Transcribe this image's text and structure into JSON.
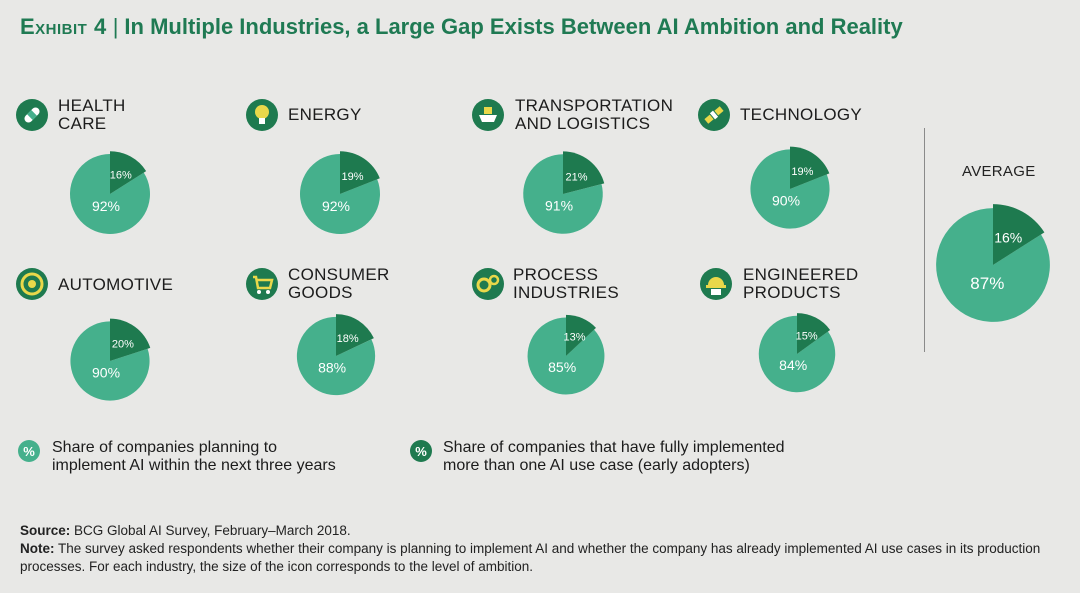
{
  "header": {
    "exhibit": "Exhibit 4",
    "separator": "|",
    "title": "In Multiple Industries, a Large Gap Exists Between AI Ambition and Reality"
  },
  "colors": {
    "light": "#45b08c",
    "dark": "#1e7a4f",
    "title": "#1f7a53"
  },
  "chart_data": {
    "type": "pie",
    "description_values": "Each industry: ambition = share planning to implement AI within next three years; adopters = share with more than one AI use case fully implemented",
    "industries": [
      {
        "name_line1": "HEALTH",
        "name_line2": "CARE",
        "icon": "bandage-icon",
        "ambition": 92,
        "adopters": 16
      },
      {
        "name_line1": "ENERGY",
        "name_line2": "",
        "icon": "lightbulb-icon",
        "ambition": 92,
        "adopters": 19
      },
      {
        "name_line1": "TRANSPORTATION",
        "name_line2": "AND LOGISTICS",
        "icon": "ship-icon",
        "ambition": 91,
        "adopters": 21
      },
      {
        "name_line1": "TECHNOLOGY",
        "name_line2": "",
        "icon": "satellite-icon",
        "ambition": 90,
        "adopters": 19
      },
      {
        "name_line1": "AUTOMOTIVE",
        "name_line2": "",
        "icon": "wheel-icon",
        "ambition": 90,
        "adopters": 20
      },
      {
        "name_line1": "CONSUMER",
        "name_line2": "GOODS",
        "icon": "cart-icon",
        "ambition": 88,
        "adopters": 18
      },
      {
        "name_line1": "PROCESS",
        "name_line2": "INDUSTRIES",
        "icon": "gears-icon",
        "ambition": 85,
        "adopters": 13
      },
      {
        "name_line1": "ENGINEERED",
        "name_line2": "PRODUCTS",
        "icon": "hardhat-icon",
        "ambition": 84,
        "adopters": 15
      }
    ],
    "average": {
      "label": "AVERAGE",
      "ambition": 87,
      "adopters": 16
    }
  },
  "legend": {
    "symbol": "%",
    "light_line1": "Share of companies planning to",
    "light_line2": "implement AI within the next three years",
    "dark_line1": "Share of companies that have fully implemented",
    "dark_line2": "more than one AI use case (early adopters)"
  },
  "footer": {
    "source_label": "Source:",
    "source_text": " BCG Global AI Survey, February–March 2018.",
    "note_label": "Note:",
    "note_text": " The survey asked respondents whether their company is planning to implement AI and whether the company has already implemented AI use cases in its production processes. For each industry, the size of the icon corresponds to the level of ambition."
  }
}
